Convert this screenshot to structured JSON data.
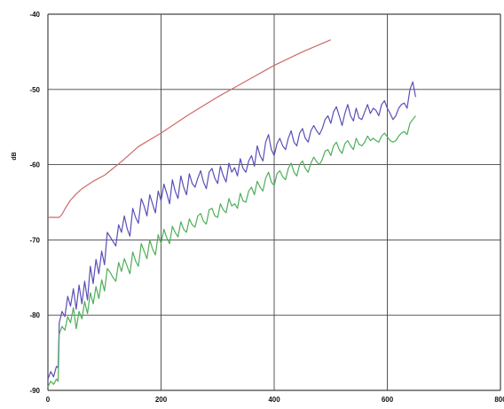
{
  "chart_data": {
    "type": "line",
    "title": "",
    "xlabel": "",
    "ylabel": "dB",
    "xlim": [
      0,
      800
    ],
    "ylim": [
      -90,
      -40
    ],
    "x_ticks": [
      "0",
      "200",
      "400",
      "600",
      "800"
    ],
    "y_ticks": [
      "-40",
      "-50",
      "-60",
      "-70",
      "-80",
      "-90"
    ],
    "grid": true,
    "colors": {
      "red": "#cc6a6a",
      "blue": "#5a4fb8",
      "green": "#4fae5a",
      "grid": "#444444",
      "background": "#ffffff"
    },
    "series": [
      {
        "color_key": "red",
        "x": [
          0,
          20,
          25,
          30,
          40,
          50,
          60,
          80,
          100,
          130,
          160,
          200,
          250,
          300,
          350,
          400,
          450,
          500
        ],
        "y": [
          -67,
          -67,
          -66.6,
          -65.9,
          -64.7,
          -63.9,
          -63.2,
          -62.2,
          -61.4,
          -59.6,
          -57.6,
          -55.8,
          -53.3,
          -51.0,
          -48.9,
          -46.8,
          -45.0,
          -43.4
        ]
      },
      {
        "color_key": "blue",
        "x": [
          0,
          5,
          10,
          15,
          18,
          20,
          25,
          30,
          35,
          40,
          45,
          50,
          55,
          60,
          65,
          70,
          75,
          80,
          85,
          90,
          95,
          100,
          105,
          110,
          115,
          120,
          125,
          130,
          135,
          140,
          145,
          150,
          155,
          160,
          165,
          170,
          175,
          180,
          185,
          190,
          195,
          200,
          205,
          210,
          215,
          220,
          225,
          230,
          235,
          240,
          245,
          250,
          255,
          260,
          265,
          270,
          275,
          280,
          285,
          290,
          295,
          300,
          305,
          310,
          315,
          320,
          325,
          330,
          335,
          340,
          345,
          350,
          355,
          360,
          365,
          370,
          375,
          380,
          385,
          390,
          395,
          400,
          405,
          410,
          415,
          420,
          425,
          430,
          435,
          440,
          445,
          450,
          455,
          460,
          465,
          470,
          475,
          480,
          485,
          490,
          495,
          500,
          505,
          510,
          515,
          520,
          525,
          530,
          535,
          540,
          545,
          550,
          555,
          560,
          565,
          570,
          575,
          580,
          585,
          590,
          595,
          600,
          605,
          610,
          615,
          620,
          625,
          630,
          635,
          640,
          645,
          650
        ],
        "y": [
          -88.5,
          -87.5,
          -88.2,
          -86.8,
          -87.0,
          -81.0,
          -79.5,
          -80.2,
          -77.5,
          -78.8,
          -76.5,
          -79.2,
          -76.0,
          -78.5,
          -75.5,
          -78.0,
          -73.5,
          -75.8,
          -72.6,
          -74.5,
          -71.5,
          -73.3,
          -69.0,
          -69.6,
          -70.2,
          -70.8,
          -68.0,
          -69.0,
          -66.8,
          -68.5,
          -69.5,
          -65.8,
          -67.0,
          -67.8,
          -64.5,
          -65.5,
          -66.8,
          -64.0,
          -65.2,
          -66.4,
          -63.5,
          -64.8,
          -62.6,
          -63.8,
          -65.2,
          -62.0,
          -63.5,
          -64.5,
          -61.5,
          -63.0,
          -64.0,
          -61.2,
          -62.5,
          -63.0,
          -61.8,
          -60.8,
          -62.3,
          -63.2,
          -61.0,
          -60.5,
          -61.8,
          -62.5,
          -60.2,
          -61.5,
          -62.3,
          -59.8,
          -61.0,
          -60.4,
          -61.5,
          -59.2,
          -60.5,
          -61.0,
          -59.5,
          -58.8,
          -60.2,
          -57.5,
          -58.8,
          -59.5,
          -57.0,
          -56.0,
          -58.0,
          -58.8,
          -57.2,
          -56.5,
          -57.5,
          -58.0,
          -56.5,
          -55.5,
          -57.0,
          -57.5,
          -55.8,
          -55.2,
          -56.5,
          -57.0,
          -55.5,
          -54.8,
          -55.5,
          -56.0,
          -55.2,
          -54.0,
          -53.5,
          -54.5,
          -53.0,
          -52.3,
          -53.5,
          -54.8,
          -53.2,
          -52.0,
          -53.5,
          -54.2,
          -52.5,
          -53.8,
          -54.0,
          -53.0,
          -52.0,
          -53.2,
          -52.5,
          -52.8,
          -53.5,
          -52.0,
          -51.5,
          -52.5,
          -53.2,
          -54.0,
          -53.5,
          -52.5,
          -52.0,
          -51.8,
          -52.5,
          -50.0,
          -49.0,
          -51.0
        ]
      },
      {
        "color_key": "green",
        "x": [
          0,
          5,
          10,
          15,
          18,
          20,
          25,
          30,
          35,
          40,
          45,
          50,
          55,
          60,
          65,
          70,
          75,
          80,
          85,
          90,
          95,
          100,
          105,
          110,
          115,
          120,
          125,
          130,
          135,
          140,
          145,
          150,
          155,
          160,
          165,
          170,
          175,
          180,
          185,
          190,
          195,
          200,
          205,
          210,
          215,
          220,
          225,
          230,
          235,
          240,
          245,
          250,
          255,
          260,
          265,
          270,
          275,
          280,
          285,
          290,
          295,
          300,
          305,
          310,
          315,
          320,
          325,
          330,
          335,
          340,
          345,
          350,
          355,
          360,
          365,
          370,
          375,
          380,
          385,
          390,
          395,
          400,
          405,
          410,
          415,
          420,
          425,
          430,
          435,
          440,
          445,
          450,
          455,
          460,
          465,
          470,
          475,
          480,
          485,
          490,
          495,
          500,
          505,
          510,
          515,
          520,
          525,
          530,
          535,
          540,
          545,
          550,
          555,
          560,
          565,
          570,
          575,
          580,
          585,
          590,
          595,
          600,
          605,
          610,
          615,
          620,
          625,
          630,
          635,
          640,
          645,
          650
        ],
        "y": [
          -89.5,
          -88.8,
          -89.2,
          -88.5,
          -88.8,
          -82.5,
          -81.5,
          -82.0,
          -80.2,
          -81.0,
          -79.0,
          -81.8,
          -79.5,
          -80.5,
          -78.2,
          -79.8,
          -77.0,
          -78.5,
          -76.2,
          -77.8,
          -75.3,
          -76.8,
          -73.8,
          -74.3,
          -75.0,
          -75.5,
          -73.0,
          -74.2,
          -72.5,
          -73.5,
          -74.5,
          -71.6,
          -72.8,
          -73.5,
          -70.5,
          -71.5,
          -72.5,
          -70.0,
          -71.2,
          -72.0,
          -69.3,
          -70.5,
          -68.6,
          -69.7,
          -70.5,
          -68.2,
          -69.0,
          -69.6,
          -67.6,
          -68.6,
          -69.0,
          -67.2,
          -68.0,
          -68.3,
          -66.8,
          -66.5,
          -67.5,
          -67.9,
          -66.0,
          -65.8,
          -66.8,
          -67.0,
          -65.2,
          -66.0,
          -66.4,
          -64.5,
          -65.5,
          -65.2,
          -65.8,
          -63.8,
          -64.8,
          -65.0,
          -63.5,
          -63.0,
          -64.0,
          -62.2,
          -63.0,
          -63.5,
          -61.8,
          -61.0,
          -62.3,
          -62.8,
          -61.2,
          -60.8,
          -61.6,
          -62.0,
          -60.5,
          -59.8,
          -61.0,
          -61.5,
          -60.0,
          -59.5,
          -60.5,
          -61.0,
          -59.8,
          -59.0,
          -59.6,
          -60.0,
          -59.3,
          -58.2,
          -58.0,
          -58.8,
          -57.5,
          -57.0,
          -58.0,
          -58.5,
          -57.2,
          -56.8,
          -57.5,
          -58.0,
          -56.5,
          -57.3,
          -57.5,
          -57.0,
          -56.2,
          -56.8,
          -56.5,
          -56.8,
          -57.0,
          -56.2,
          -55.8,
          -56.3,
          -56.8,
          -57.0,
          -56.8,
          -56.2,
          -55.8,
          -55.6,
          -56.0,
          -54.5,
          -54.0,
          -53.5
        ]
      }
    ]
  }
}
